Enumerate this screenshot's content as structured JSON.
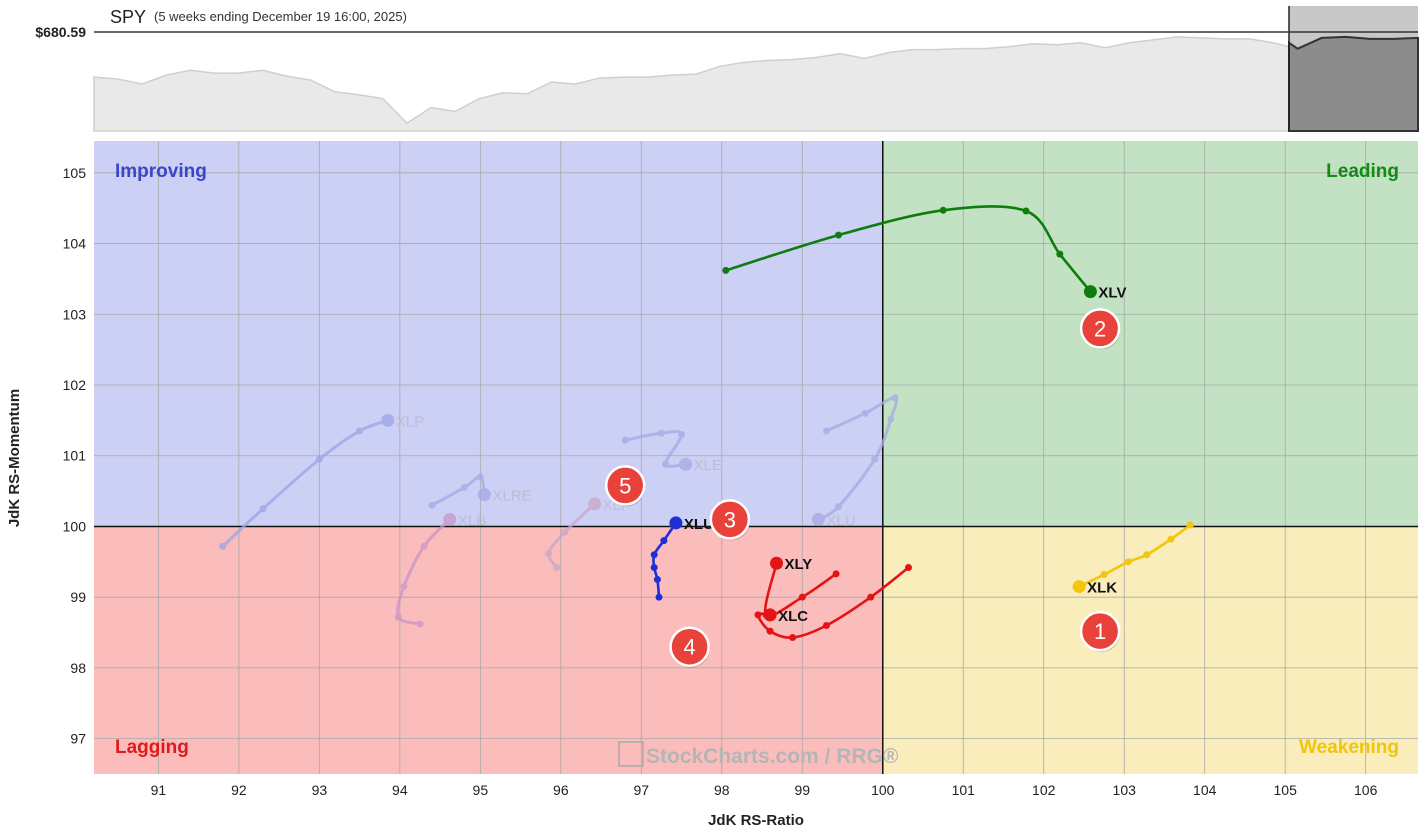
{
  "header": {
    "symbol": "SPY",
    "period": "(5 weeks ending December 19 16:00, 2025)",
    "price": "$680.59"
  },
  "chart_data": {
    "type": "scatter",
    "subtype": "relative-rotation-graph",
    "xlabel": "JdK RS-Ratio",
    "ylabel": "JdK RS-Momentum",
    "xlim": [
      90.2,
      106.65
    ],
    "ylim": [
      96.5,
      105.45
    ],
    "x_ticks": [
      91,
      92,
      93,
      94,
      95,
      96,
      97,
      98,
      99,
      100,
      101,
      102,
      103,
      104,
      105,
      106
    ],
    "y_ticks": [
      97,
      98,
      99,
      100,
      101,
      102,
      103,
      104,
      105
    ],
    "grid": true,
    "center": [
      100,
      100
    ],
    "quadrants": [
      {
        "name": "Improving",
        "position": "top-left",
        "fill": "#ccd0f4",
        "label_color": "#3b45c8"
      },
      {
        "name": "Leading",
        "position": "top-right",
        "fill": "#c3e2c3",
        "label_color": "#138a13"
      },
      {
        "name": "Lagging",
        "position": "bottom-left",
        "fill": "#fbbcbc",
        "label_color": "#e01b1b"
      },
      {
        "name": "Weakening",
        "position": "bottom-right",
        "fill": "#f8edbb",
        "label_color": "#f2c40a"
      }
    ],
    "series": [
      {
        "name": "XLV",
        "color": "#0e7d0e",
        "faded": false,
        "tail": [
          [
            98.05,
            103.62
          ],
          [
            99.45,
            104.12
          ],
          [
            100.75,
            104.47
          ],
          [
            101.78,
            104.46
          ],
          [
            102.2,
            103.85
          ],
          [
            102.58,
            103.32
          ]
        ]
      },
      {
        "name": "XLK",
        "color": "#f2c60c",
        "faded": false,
        "tail": [
          [
            103.82,
            100.02
          ],
          [
            103.58,
            99.82
          ],
          [
            103.28,
            99.6
          ],
          [
            103.05,
            99.5
          ],
          [
            102.75,
            99.32
          ],
          [
            102.44,
            99.15
          ]
        ]
      },
      {
        "name": "XLY",
        "color": "#e51414",
        "faded": false,
        "tail": [
          [
            99.42,
            99.33
          ],
          [
            99.0,
            99.0
          ],
          [
            98.55,
            98.75
          ],
          [
            98.68,
            99.48
          ]
        ]
      },
      {
        "name": "XLC",
        "color": "#e51414",
        "faded": false,
        "tail": [
          [
            100.32,
            99.42
          ],
          [
            99.85,
            99.0
          ],
          [
            99.3,
            98.6
          ],
          [
            98.88,
            98.43
          ],
          [
            98.6,
            98.52
          ],
          [
            98.45,
            98.75
          ],
          [
            98.6,
            98.75
          ]
        ]
      },
      {
        "name": "XLU",
        "color": "#1f2fd6",
        "faded": false,
        "tail": [
          [
            97.22,
            99.0
          ],
          [
            97.2,
            99.25
          ],
          [
            97.16,
            99.42
          ],
          [
            97.16,
            99.6
          ],
          [
            97.28,
            99.8
          ],
          [
            97.43,
            100.05
          ]
        ]
      },
      {
        "name": "XLP",
        "color": "#9aa4e6",
        "faded": true,
        "tail": [
          [
            91.8,
            99.72
          ],
          [
            92.3,
            100.25
          ],
          [
            93.0,
            100.95
          ],
          [
            93.5,
            101.35
          ],
          [
            93.85,
            101.5
          ]
        ]
      },
      {
        "name": "XLB",
        "color": "#c994c8",
        "faded": true,
        "tail": [
          [
            94.25,
            98.62
          ],
          [
            93.98,
            98.72
          ],
          [
            94.05,
            99.15
          ],
          [
            94.3,
            99.72
          ],
          [
            94.62,
            100.1
          ]
        ]
      },
      {
        "name": "XLRE",
        "color": "#a6a8e4",
        "faded": true,
        "tail": [
          [
            94.4,
            100.3
          ],
          [
            94.8,
            100.55
          ],
          [
            95.0,
            100.7
          ],
          [
            95.05,
            100.45
          ]
        ]
      },
      {
        "name": "XLF",
        "color": "#c8a6c8",
        "faded": true,
        "tail": [
          [
            95.95,
            99.42
          ],
          [
            95.85,
            99.62
          ],
          [
            96.05,
            99.92
          ],
          [
            96.42,
            100.32
          ]
        ]
      },
      {
        "name": "XLE",
        "color": "#a6a9e4",
        "faded": true,
        "tail": [
          [
            96.8,
            101.22
          ],
          [
            97.25,
            101.32
          ],
          [
            97.5,
            101.3
          ],
          [
            97.3,
            100.88
          ],
          [
            97.55,
            100.88
          ]
        ]
      },
      {
        "name": "XLU",
        "color": "#a6a9e4",
        "faded": true,
        "tail": [
          [
            99.3,
            101.35
          ],
          [
            99.78,
            101.6
          ],
          [
            100.15,
            101.82
          ],
          [
            100.1,
            101.52
          ],
          [
            99.9,
            100.95
          ],
          [
            99.45,
            100.28
          ],
          [
            99.2,
            100.1
          ]
        ]
      }
    ],
    "annotations": [
      {
        "text": "1",
        "x": 102.7,
        "y": 98.52
      },
      {
        "text": "2",
        "x": 102.7,
        "y": 102.8
      },
      {
        "text": "3",
        "x": 98.1,
        "y": 100.1
      },
      {
        "text": "4",
        "x": 97.6,
        "y": 98.3
      },
      {
        "text": "5",
        "x": 96.8,
        "y": 100.58
      }
    ],
    "watermark": "StockCharts.com / RRG®"
  },
  "spy_sparkline": {
    "values": [
      0.55,
      0.53,
      0.48,
      0.57,
      0.62,
      0.59,
      0.59,
      0.62,
      0.56,
      0.52,
      0.4,
      0.37,
      0.33,
      0.08,
      0.24,
      0.2,
      0.33,
      0.39,
      0.38,
      0.5,
      0.48,
      0.54,
      0.55,
      0.55,
      0.57,
      0.58,
      0.66,
      0.7,
      0.72,
      0.73,
      0.75,
      0.79,
      0.74,
      0.8,
      0.83,
      0.83,
      0.84,
      0.84,
      0.86,
      0.89,
      0.88,
      0.9,
      0.85,
      0.9,
      0.93,
      0.96,
      0.95,
      0.94,
      0.94,
      0.9,
      0.84,
      0.95,
      0.96,
      0.94,
      0.94,
      0.95
    ]
  }
}
